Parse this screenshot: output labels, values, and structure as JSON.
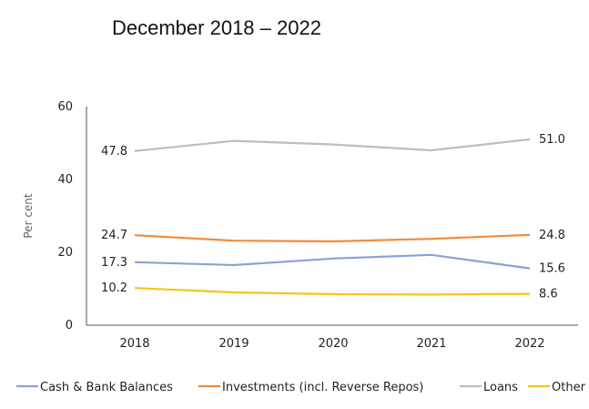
{
  "subtitle": "December 2018 – 2022",
  "chart_data": {
    "type": "line",
    "title": "",
    "xlabel": "",
    "ylabel": "Per cent",
    "categories": [
      "2018",
      "2019",
      "2020",
      "2021",
      "2022"
    ],
    "ylim": [
      0,
      60
    ],
    "yticks": [
      0,
      20,
      40,
      60
    ],
    "grid": false,
    "legend": "bottom",
    "series": [
      {
        "name": "Cash & Bank Balances",
        "color": "#8ea0d6",
        "values": [
          17.3,
          16.5,
          18.3,
          19.3,
          15.6
        ]
      },
      {
        "name": "Investments (incl. Reverse Repos)",
        "color": "#f08a3c",
        "values": [
          24.7,
          23.2,
          23.0,
          23.7,
          24.8
        ]
      },
      {
        "name": "Loans",
        "color": "#bdbdbd",
        "values": [
          47.8,
          50.6,
          49.6,
          48.0,
          51.0
        ]
      },
      {
        "name": "Other",
        "color": "#f7c518",
        "values": [
          10.2,
          9.0,
          8.5,
          8.4,
          8.6
        ]
      }
    ],
    "data_labels": [
      {
        "series": 0,
        "index": 0,
        "text": "17.3"
      },
      {
        "series": 0,
        "index": 4,
        "text": "15.6"
      },
      {
        "series": 1,
        "index": 0,
        "text": "24.7"
      },
      {
        "series": 1,
        "index": 4,
        "text": "24.8"
      },
      {
        "series": 2,
        "index": 0,
        "text": "47.8"
      },
      {
        "series": 2,
        "index": 4,
        "text": "51.0"
      },
      {
        "series": 3,
        "index": 0,
        "text": "10.2"
      },
      {
        "series": 3,
        "index": 4,
        "text": "8.6"
      }
    ]
  }
}
